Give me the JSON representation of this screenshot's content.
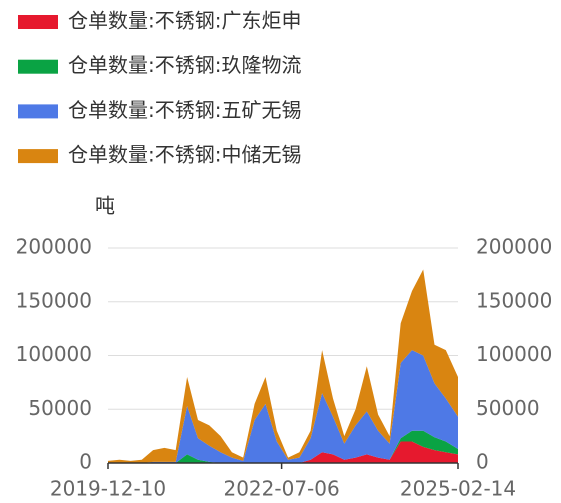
{
  "chart_data": {
    "type": "stacked-area",
    "y_label": "吨",
    "x": [
      "2019-12-10",
      "2020-02-10",
      "2020-04-10",
      "2020-06-10",
      "2020-08-10",
      "2020-10-10",
      "2020-12-10",
      "2021-02-10",
      "2021-04-10",
      "2021-06-10",
      "2021-08-10",
      "2021-10-10",
      "2021-12-10",
      "2022-02-10",
      "2022-04-10",
      "2022-06-10",
      "2022-08-10",
      "2022-10-10",
      "2022-12-10",
      "2023-02-10",
      "2023-04-10",
      "2023-06-10",
      "2023-08-10",
      "2023-10-10",
      "2023-12-10",
      "2024-02-10",
      "2024-04-10",
      "2024-06-10",
      "2024-08-10",
      "2024-10-10",
      "2024-12-10",
      "2025-02-14"
    ],
    "xlim": [
      "2019-12-10",
      "2025-02-14"
    ],
    "xticks": [
      "2019-12-10",
      "2022-07-06",
      "2025-02-14"
    ],
    "ylim": [
      0,
      200000
    ],
    "yticks": [
      0,
      50000,
      100000,
      150000,
      200000
    ],
    "grid": true,
    "series": [
      {
        "name": "仓单数量:不锈钢:广东炬申",
        "color": "#e6192e",
        "values": [
          0,
          0,
          0,
          0,
          0,
          0,
          0,
          0,
          0,
          0,
          0,
          0,
          0,
          0,
          0,
          0,
          0,
          0,
          3000,
          10000,
          8000,
          3000,
          5000,
          8000,
          5000,
          3000,
          20000,
          20000,
          15000,
          12000,
          10000,
          8000
        ]
      },
      {
        "name": "仓单数量:不锈钢:玖隆物流",
        "color": "#0aa344",
        "values": [
          0,
          0,
          0,
          0,
          0,
          0,
          0,
          8000,
          3000,
          1000,
          0,
          0,
          0,
          0,
          0,
          0,
          0,
          0,
          0,
          0,
          0,
          0,
          0,
          0,
          0,
          0,
          3000,
          10000,
          15000,
          12000,
          10000,
          5000
        ]
      },
      {
        "name": "仓单数量:不锈钢:五矿无锡",
        "color": "#4e79e6",
        "values": [
          0,
          0,
          0,
          0,
          1000,
          1000,
          1000,
          45000,
          20000,
          15000,
          10000,
          5000,
          2000,
          40000,
          55000,
          20000,
          3000,
          5000,
          20000,
          55000,
          35000,
          15000,
          30000,
          40000,
          25000,
          15000,
          70000,
          75000,
          70000,
          50000,
          40000,
          30000
        ]
      },
      {
        "name": "仓单数量:不锈钢:中储无锡",
        "color": "#d98511",
        "values": [
          2000,
          3000,
          2000,
          3000,
          11000,
          13000,
          11000,
          27000,
          17000,
          19000,
          15000,
          5000,
          3000,
          15000,
          25000,
          10000,
          2000,
          5000,
          7000,
          40000,
          17000,
          7000,
          15000,
          42000,
          15000,
          7000,
          37000,
          55000,
          80000,
          36000,
          45000,
          37000
        ]
      }
    ]
  }
}
